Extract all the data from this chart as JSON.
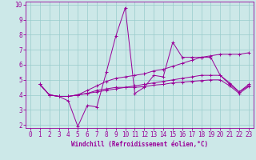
{
  "xlabel": "Windchill (Refroidissement éolien,°C)",
  "xlim": [
    -0.5,
    23.5
  ],
  "ylim": [
    1.8,
    10.2
  ],
  "xticks": [
    0,
    1,
    2,
    3,
    4,
    5,
    6,
    7,
    8,
    9,
    10,
    11,
    12,
    13,
    14,
    15,
    16,
    17,
    18,
    19,
    20,
    21,
    22,
    23
  ],
  "yticks": [
    2,
    3,
    4,
    5,
    6,
    7,
    8,
    9,
    10
  ],
  "background_color": "#cce8e8",
  "grid_color": "#99cccc",
  "line_color": "#990099",
  "series_x": [
    1,
    2,
    3,
    4,
    5,
    6,
    7,
    8,
    9,
    10,
    11,
    12,
    13,
    14,
    15,
    16,
    17,
    18,
    19,
    20,
    21,
    22,
    23
  ],
  "series": [
    [
      4.7,
      4.0,
      3.9,
      3.6,
      1.9,
      3.3,
      3.2,
      5.5,
      7.9,
      9.8,
      4.1,
      4.5,
      5.3,
      5.2,
      7.5,
      6.5,
      6.5,
      6.5,
      6.5,
      5.3,
      4.7,
      4.2,
      4.7
    ],
    [
      4.7,
      4.0,
      3.9,
      3.9,
      4.0,
      4.3,
      4.6,
      4.9,
      5.1,
      5.2,
      5.3,
      5.4,
      5.6,
      5.7,
      5.9,
      6.1,
      6.3,
      6.5,
      6.6,
      6.7,
      6.7,
      6.7,
      6.8
    ],
    [
      4.7,
      4.0,
      3.9,
      3.9,
      4.0,
      4.1,
      4.3,
      4.4,
      4.5,
      4.5,
      4.6,
      4.7,
      4.8,
      4.9,
      5.0,
      5.1,
      5.2,
      5.3,
      5.3,
      5.3,
      4.8,
      4.2,
      4.6
    ],
    [
      4.7,
      4.0,
      3.9,
      3.9,
      4.0,
      4.1,
      4.2,
      4.3,
      4.4,
      4.5,
      4.5,
      4.55,
      4.65,
      4.7,
      4.8,
      4.85,
      4.9,
      4.95,
      5.0,
      5.0,
      4.6,
      4.1,
      4.55
    ]
  ],
  "marker": "+",
  "linewidth": 0.7,
  "markersize": 3,
  "tick_labelsize": 5.5,
  "xlabel_fontsize": 5.5
}
